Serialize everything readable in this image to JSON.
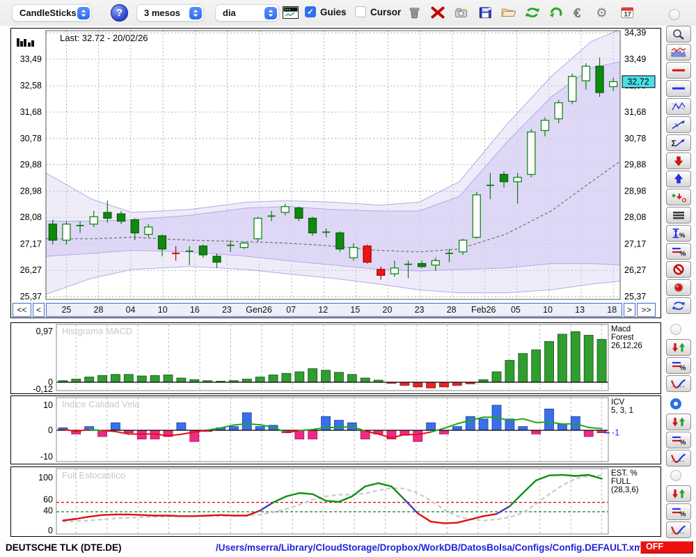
{
  "toolbar": {
    "selects": [
      {
        "label": "CandleSticks"
      },
      {
        "label": "3 mesos"
      },
      {
        "label": "dia"
      }
    ],
    "help_label": "?",
    "mini_chart_icon": "mini-chart",
    "checkboxes": [
      {
        "label": "Guies",
        "checked": true
      },
      {
        "label": "Cursor",
        "checked": false
      }
    ],
    "icons": [
      "trash",
      "delete-x",
      "camera",
      "save",
      "open-folder",
      "sync",
      "undo",
      "euro",
      "settings",
      "calendar"
    ],
    "calendar_day": "17"
  },
  "main_chart": {
    "last_label": "Last: 32.72 - 20/02/26",
    "price_tag": "32,72",
    "left_axis": [
      "33,49",
      "32,58",
      "31,68",
      "30,78",
      "29,88",
      "28,98",
      "28,08",
      "27,17",
      "26,27",
      "25,37"
    ],
    "right_axis": [
      "34,39",
      "33,49",
      "32,58",
      "31,68",
      "30,78",
      "29,88",
      "28,98",
      "28,08",
      "27,17",
      "26,27",
      "25,37"
    ],
    "dates": [
      "25",
      "28",
      "04",
      "10",
      "16",
      "23",
      "Gen26",
      "07",
      "12",
      "15",
      "20",
      "23",
      "28",
      "Feb26",
      "05",
      "10",
      "13",
      "18"
    ],
    "nav": {
      "fast_back": "<<",
      "back": "<",
      "fwd": ">",
      "fast_fwd": ">>"
    }
  },
  "panels": [
    {
      "id": "macd",
      "title": "Histgrama MACD",
      "y_labels": [
        "0,97",
        "0",
        "-0,12"
      ],
      "right_label": [
        "Macd",
        "Forest",
        "26,12,26"
      ]
    },
    {
      "id": "icv",
      "title": "Indice Calidad Vela",
      "y_labels": [
        "10",
        "0",
        "-10"
      ],
      "right_label": [
        "ICV",
        "5, 3, 1"
      ],
      "value_label": "-1"
    },
    {
      "id": "stoch",
      "title": "Full Estocastico",
      "y_labels": [
        "100",
        "60",
        "40",
        "0"
      ],
      "right_label": [
        "EST. %",
        "FULL",
        "(28,3,6)"
      ]
    }
  ],
  "sidebar": {
    "tools": [
      "zoom",
      "indicator-chart",
      "red-line",
      "blue-line",
      "zigzag",
      "trendline",
      "sum-trendline",
      "arrow-down-red",
      "arrow-up-blue",
      "add-signal",
      "list-lines",
      "updown-percent",
      "levels-percent",
      "block",
      "record",
      "refresh"
    ],
    "panel_groups": [
      {
        "panel": "macd",
        "radio_selected": false,
        "buttons": [
          "arrows-updown",
          "levels-percent",
          "curve"
        ]
      },
      {
        "panel": "icv",
        "radio_selected": true,
        "buttons": [
          "arrows-updown",
          "levels-percent",
          "curve"
        ]
      },
      {
        "panel": "stoch",
        "radio_selected": false,
        "buttons": [
          "arrows-updown",
          "levels-percent",
          "curve"
        ]
      }
    ]
  },
  "statusbar": {
    "symbol": "DEUTSCHE TLK (DTE.DE)",
    "path": "/Users/mserra/Library/CloudStorage/Dropbox/WorkDB/DatosBolsa/Configs/Config.DEFAULT.xml",
    "off_label": "OFF"
  },
  "colors": {
    "accent_blue": "#2f6fed",
    "candle_green": "#0f8a0f",
    "candle_red": "#ee1515",
    "band_fill": "#d8d2f4",
    "price_tag_bg": "#4ae0e8",
    "macd_green": "#2f9e2f",
    "macd_red": "#ee2222",
    "icv_blue": "#3a6fe8",
    "icv_pink": "#ee2a88",
    "stoch_red": "#e01010",
    "stoch_green": "#109010",
    "stoch_purple": "#4838b8",
    "off_red": "#ee0f0f",
    "path_blue": "#2222dd"
  },
  "chart_data": [
    {
      "type": "candlestick",
      "title": "DEUTSCHE TLK (DTE.DE) daily, 3 months",
      "ylim": [
        25.37,
        34.39
      ],
      "last": 32.72,
      "last_date": "20/02/26",
      "candle_styles": "s=solid-green h=hollow-green d=green-doji r=solid-red rc=red-doji; arrays are [open,high,low,close,style]",
      "candles": [
        [
          27.85,
          28.0,
          27.15,
          27.3,
          "s"
        ],
        [
          27.3,
          27.95,
          27.15,
          27.85,
          "h"
        ],
        [
          27.75,
          27.95,
          27.55,
          27.85,
          "d"
        ],
        [
          27.85,
          28.3,
          27.75,
          28.1,
          "h"
        ],
        [
          28.05,
          28.65,
          27.9,
          28.25,
          "s"
        ],
        [
          28.2,
          28.3,
          27.85,
          27.95,
          "s"
        ],
        [
          28.0,
          28.05,
          27.3,
          27.55,
          "s"
        ],
        [
          27.5,
          27.85,
          27.4,
          27.75,
          "h"
        ],
        [
          27.45,
          27.5,
          26.75,
          27.0,
          "s"
        ],
        [
          26.85,
          27.1,
          26.6,
          26.85,
          "rc"
        ],
        [
          26.95,
          27.1,
          26.45,
          26.9,
          "d"
        ],
        [
          27.1,
          27.15,
          26.7,
          26.8,
          "s"
        ],
        [
          26.75,
          26.85,
          26.35,
          26.55,
          "s"
        ],
        [
          27.1,
          27.3,
          26.9,
          27.15,
          "d"
        ],
        [
          27.05,
          27.25,
          27.0,
          27.2,
          "h"
        ],
        [
          27.35,
          28.1,
          27.25,
          28.05,
          "h"
        ],
        [
          28.1,
          28.3,
          27.95,
          28.15,
          "d"
        ],
        [
          28.25,
          28.55,
          28.15,
          28.45,
          "h"
        ],
        [
          28.4,
          28.45,
          27.95,
          28.05,
          "s"
        ],
        [
          28.05,
          28.1,
          27.45,
          27.55,
          "s"
        ],
        [
          27.55,
          27.7,
          27.4,
          27.6,
          "d"
        ],
        [
          27.55,
          27.6,
          26.9,
          27.0,
          "s"
        ],
        [
          27.05,
          27.2,
          26.6,
          26.7,
          "h"
        ],
        [
          27.1,
          27.15,
          26.5,
          26.55,
          "r"
        ],
        [
          26.3,
          26.4,
          25.95,
          26.1,
          "r"
        ],
        [
          26.15,
          26.6,
          26.05,
          26.35,
          "h"
        ],
        [
          26.5,
          26.6,
          26.0,
          26.45,
          "d"
        ],
        [
          26.5,
          26.6,
          26.35,
          26.4,
          "s"
        ],
        [
          26.45,
          26.7,
          26.25,
          26.6,
          "h"
        ],
        [
          26.8,
          27.0,
          26.55,
          26.9,
          "d"
        ],
        [
          26.9,
          27.35,
          26.8,
          27.3,
          "h"
        ],
        [
          27.4,
          28.95,
          27.35,
          28.85,
          "h"
        ],
        [
          29.1,
          29.6,
          28.7,
          29.25,
          "d"
        ],
        [
          29.3,
          29.65,
          29.1,
          29.55,
          "s"
        ],
        [
          29.45,
          29.6,
          28.55,
          29.3,
          "h"
        ],
        [
          29.55,
          31.1,
          29.45,
          31.0,
          "h"
        ],
        [
          31.05,
          31.5,
          30.85,
          31.4,
          "h"
        ],
        [
          31.45,
          32.1,
          31.3,
          32.0,
          "h"
        ],
        [
          32.05,
          33.0,
          31.95,
          32.9,
          "h"
        ],
        [
          32.75,
          33.35,
          32.45,
          33.25,
          "h"
        ],
        [
          33.25,
          33.55,
          32.2,
          32.35,
          "s"
        ],
        [
          32.55,
          32.85,
          32.4,
          32.72,
          "h"
        ]
      ],
      "bands": {
        "t": [
          0,
          0.08,
          0.15,
          0.25,
          0.35,
          0.42,
          0.5,
          0.58,
          0.65,
          0.72,
          0.8,
          0.88,
          0.95,
          1.0
        ],
        "outer_hi": [
          29.6,
          28.7,
          28.25,
          28.35,
          28.6,
          28.65,
          28.6,
          28.5,
          28.6,
          29.3,
          31.2,
          32.9,
          34.1,
          34.5
        ],
        "inner_hi": [
          27.95,
          27.95,
          28.0,
          28.15,
          28.4,
          28.45,
          28.35,
          28.3,
          28.3,
          28.8,
          30.6,
          32.2,
          33.2,
          33.4
        ],
        "inner_lo": [
          26.75,
          26.85,
          26.95,
          26.9,
          26.75,
          26.6,
          26.45,
          26.3,
          26.25,
          26.3,
          26.35,
          26.5,
          26.5,
          26.45
        ],
        "outer_lo": [
          25.45,
          26.0,
          26.3,
          26.4,
          26.3,
          26.15,
          26.0,
          25.8,
          25.6,
          25.5,
          25.5,
          25.6,
          25.8,
          25.9
        ],
        "mid": [
          27.35,
          27.35,
          27.4,
          27.3,
          27.25,
          27.2,
          27.1,
          26.95,
          26.9,
          27.0,
          27.5,
          28.3,
          29.3,
          30.0
        ]
      }
    },
    {
      "type": "bar",
      "title": "Histgrama MACD",
      "params": "26,12,26",
      "ylim": [
        -0.12,
        0.97
      ],
      "values": [
        0.03,
        0.06,
        0.1,
        0.13,
        0.15,
        0.15,
        0.12,
        0.13,
        0.14,
        0.08,
        0.05,
        0.03,
        0.02,
        0.03,
        0.06,
        0.1,
        0.14,
        0.17,
        0.2,
        0.26,
        0.23,
        0.19,
        0.15,
        0.08,
        0.04,
        -0.02,
        -0.06,
        -0.09,
        -0.11,
        -0.09,
        -0.06,
        -0.03,
        0.05,
        0.2,
        0.42,
        0.55,
        0.62,
        0.78,
        0.92,
        0.97,
        0.9,
        0.82
      ]
    },
    {
      "type": "bar",
      "title": "Indice Calidad Vela",
      "params": "5, 3, 1",
      "ylim": [
        -10,
        10
      ],
      "last_value": -1,
      "values": [
        1,
        -1.5,
        1.5,
        -2.5,
        3,
        -1,
        -3.5,
        -3.5,
        -2.5,
        3,
        -4.5,
        -0.5,
        1,
        1.5,
        7,
        1.5,
        2,
        -1,
        -3.5,
        -3.5,
        5.5,
        4,
        3,
        -3.5,
        -1.5,
        -3.5,
        -2,
        -4.5,
        3,
        -1.5,
        1.5,
        5.5,
        4.5,
        10,
        4.5,
        1.5,
        -1.5,
        8.5,
        2.5,
        5.5,
        -2.5,
        -1
      ]
    },
    {
      "type": "line",
      "title": "Full Estocastico",
      "params": "(28,3,6)",
      "ylim": [
        0,
        100
      ],
      "upper_line": 55,
      "lower_line": 38,
      "k": [
        22,
        25,
        29,
        32,
        33,
        33,
        32,
        31,
        31,
        30,
        30,
        31,
        32,
        31,
        31,
        40,
        55,
        66,
        72,
        70,
        58,
        56,
        66,
        84,
        90,
        84,
        60,
        35,
        20,
        17,
        18,
        24,
        30,
        34,
        48,
        72,
        95,
        104,
        105,
        103,
        105,
        98
      ],
      "d": [
        20,
        21,
        22,
        24,
        26,
        27,
        28,
        29,
        29,
        30,
        30,
        30,
        30,
        31,
        31,
        33,
        37,
        43,
        51,
        60,
        66,
        69,
        69,
        71,
        77,
        81,
        80,
        72,
        58,
        42,
        30,
        24,
        22,
        24,
        28,
        36,
        52,
        70,
        86,
        98,
        103,
        104
      ]
    }
  ]
}
